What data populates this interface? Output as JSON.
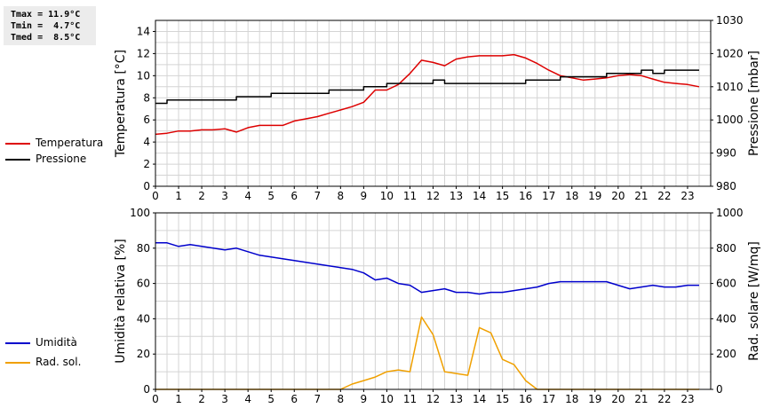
{
  "stats": {
    "tmax": "Tmax = 11.9°C",
    "tmin": "Tmin =  4.7°C",
    "tmed": "Tmed =  8.5°C"
  },
  "colors": {
    "temperature": "#dd0000",
    "pressure": "#000000",
    "humidity": "#0000cc",
    "radiation": "#f0a000",
    "grid": "#d4d4d4"
  },
  "legend_top": [
    {
      "label": "Temperatura",
      "color": "#dd0000"
    },
    {
      "label": "Pressione",
      "color": "#000000"
    }
  ],
  "legend_bottom": [
    {
      "label": "Umidità",
      "color": "#0000cc"
    },
    {
      "label": "Rad. sol.",
      "color": "#f0a000"
    }
  ],
  "chart_data": [
    {
      "type": "line",
      "xlim": [
        0,
        24
      ],
      "x_ticks": [
        "0",
        "1",
        "2",
        "3",
        "4",
        "5",
        "6",
        "7",
        "8",
        "9",
        "10",
        "11",
        "12",
        "13",
        "14",
        "15",
        "16",
        "17",
        "18",
        "19",
        "20",
        "21",
        "22",
        "23"
      ],
      "left_axis": {
        "label": "Temperatura [°C]",
        "lim": [
          0,
          15
        ],
        "ticks": [
          "0",
          "2",
          "4",
          "6",
          "8",
          "10",
          "12",
          "14"
        ]
      },
      "right_axis": {
        "label": "Pressione [mbar]",
        "lim": [
          980,
          1030
        ],
        "ticks": [
          "980",
          "990",
          "1000",
          "1010",
          "1020",
          "1030"
        ]
      },
      "grid": true,
      "series": [
        {
          "name": "Temperatura",
          "axis": "left",
          "x": [
            0,
            0.5,
            1,
            1.5,
            2,
            2.5,
            3,
            3.5,
            4,
            4.5,
            5,
            5.5,
            6,
            6.5,
            7,
            7.5,
            8,
            8.5,
            9,
            9.5,
            10,
            10.5,
            11,
            11.5,
            12,
            12.5,
            13,
            13.5,
            14,
            14.5,
            15,
            15.5,
            16,
            16.5,
            17,
            17.5,
            18,
            18.5,
            19,
            19.5,
            20,
            20.5,
            21,
            21.5,
            22,
            22.5,
            23,
            23.5
          ],
          "y": [
            4.7,
            4.8,
            5.0,
            5.0,
            5.1,
            5.1,
            5.2,
            4.9,
            5.3,
            5.5,
            5.5,
            5.5,
            5.9,
            6.1,
            6.3,
            6.6,
            6.9,
            7.2,
            7.6,
            8.7,
            8.7,
            9.2,
            10.2,
            11.4,
            11.2,
            10.9,
            11.5,
            11.7,
            11.8,
            11.8,
            11.8,
            11.9,
            11.6,
            11.1,
            10.5,
            10.0,
            9.8,
            9.6,
            9.7,
            9.8,
            10.0,
            10.1,
            10.0,
            9.7,
            9.4,
            9.3,
            9.2,
            9.0
          ]
        },
        {
          "name": "Pressione",
          "axis": "right",
          "x": [
            0,
            0.5,
            1,
            1.5,
            2,
            2.5,
            3,
            3.5,
            4,
            4.5,
            5,
            5.5,
            6,
            6.5,
            7,
            7.5,
            8,
            8.5,
            9,
            9.5,
            10,
            10.5,
            11,
            11.5,
            12,
            12.5,
            13,
            13.5,
            14,
            14.5,
            15,
            15.5,
            16,
            16.5,
            17,
            17.5,
            18,
            18.5,
            19,
            19.5,
            20,
            20.5,
            21,
            21.5,
            22,
            22.5,
            23,
            23.5
          ],
          "y": [
            1005,
            1006,
            1006,
            1006,
            1006,
            1006,
            1006,
            1007,
            1007,
            1007,
            1008,
            1008,
            1008,
            1008,
            1008,
            1009,
            1009,
            1009,
            1010,
            1010,
            1011,
            1011,
            1011,
            1011,
            1012,
            1011,
            1011,
            1011,
            1011,
            1011,
            1011,
            1011,
            1012,
            1012,
            1012,
            1013,
            1013,
            1013,
            1013,
            1014,
            1014,
            1014,
            1015,
            1014,
            1015,
            1015,
            1015,
            1015
          ]
        }
      ]
    },
    {
      "type": "line",
      "xlim": [
        0,
        24
      ],
      "x_ticks": [
        "0",
        "1",
        "2",
        "3",
        "4",
        "5",
        "6",
        "7",
        "8",
        "9",
        "10",
        "11",
        "12",
        "13",
        "14",
        "15",
        "16",
        "17",
        "18",
        "19",
        "20",
        "21",
        "22",
        "23"
      ],
      "left_axis": {
        "label": "Umidità relativa [%]",
        "lim": [
          0,
          100
        ],
        "ticks": [
          "0",
          "20",
          "40",
          "60",
          "80",
          "100"
        ]
      },
      "right_axis": {
        "label": "Rad. solare [W/mq]",
        "lim": [
          0,
          1000
        ],
        "ticks": [
          "0",
          "200",
          "400",
          "600",
          "800",
          "1000"
        ]
      },
      "grid": true,
      "series": [
        {
          "name": "Umidità",
          "axis": "left",
          "x": [
            0,
            0.5,
            1,
            1.5,
            2,
            2.5,
            3,
            3.5,
            4,
            4.5,
            5,
            5.5,
            6,
            6.5,
            7,
            7.5,
            8,
            8.5,
            9,
            9.5,
            10,
            10.5,
            11,
            11.5,
            12,
            12.5,
            13,
            13.5,
            14,
            14.5,
            15,
            15.5,
            16,
            16.5,
            17,
            17.5,
            18,
            18.5,
            19,
            19.5,
            20,
            20.5,
            21,
            21.5,
            22,
            22.5,
            23,
            23.5
          ],
          "y": [
            83,
            83,
            81,
            82,
            81,
            80,
            79,
            80,
            78,
            76,
            75,
            74,
            73,
            72,
            71,
            70,
            69,
            68,
            66,
            62,
            63,
            60,
            59,
            55,
            56,
            57,
            55,
            55,
            54,
            55,
            55,
            56,
            57,
            58,
            60,
            61,
            61,
            61,
            61,
            61,
            59,
            57,
            58,
            59,
            58,
            58,
            59,
            59
          ]
        },
        {
          "name": "Rad. sol.",
          "axis": "right",
          "x": [
            0,
            0.5,
            1,
            1.5,
            2,
            2.5,
            3,
            3.5,
            4,
            4.5,
            5,
            5.5,
            6,
            6.5,
            7,
            7.5,
            8,
            8.5,
            9,
            9.5,
            10,
            10.5,
            11,
            11.5,
            12,
            12.5,
            13,
            13.5,
            14,
            14.5,
            15,
            15.5,
            16,
            16.5,
            17,
            17.5,
            18,
            18.5,
            19,
            19.5,
            20,
            20.5,
            21,
            21.5,
            22,
            22.5,
            23,
            23.5
          ],
          "y": [
            0,
            0,
            0,
            0,
            0,
            0,
            0,
            0,
            0,
            0,
            0,
            0,
            0,
            0,
            0,
            0,
            0,
            30,
            50,
            70,
            100,
            110,
            100,
            410,
            310,
            100,
            90,
            80,
            350,
            320,
            170,
            140,
            50,
            0,
            0,
            0,
            0,
            0,
            0,
            0,
            0,
            0,
            0,
            0,
            0,
            0,
            0,
            0
          ]
        }
      ]
    }
  ]
}
